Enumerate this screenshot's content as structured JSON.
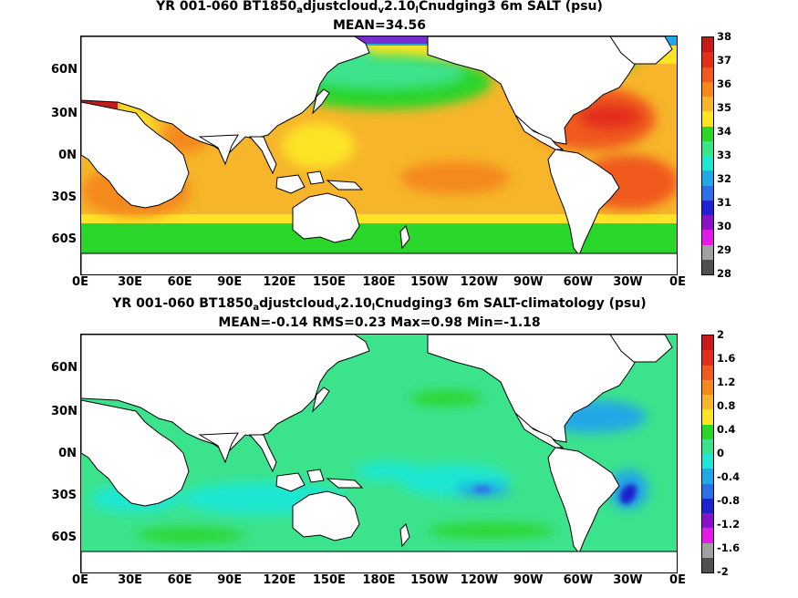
{
  "top": {
    "title_line1": {
      "a": "YR 001-060 BT1850",
      "sub1": "a",
      "b": "djustcloud",
      "sub2": "v",
      "c": "2.10",
      "sub3": "l",
      "d": "Cnudging3 6m SALT (psu)"
    },
    "title_line2": "MEAN=34.56",
    "colorbar": {
      "labels": [
        "38",
        "37",
        "36",
        "35",
        "34",
        "33",
        "32",
        "31",
        "30",
        "29",
        "28"
      ],
      "colors": [
        "#c51b1b",
        "#e32e1b",
        "#f05a1e",
        "#f4891f",
        "#f6b52a",
        "#fde427",
        "#2bd62b",
        "#3ce38d",
        "#1fe7d2",
        "#23a7e6",
        "#2d6fe6",
        "#1f23cf",
        "#8a12c8",
        "#e21ce6",
        "#a0a0a0",
        "#505050"
      ]
    }
  },
  "bottom": {
    "title_line1": {
      "a": "YR 001-060 BT1850",
      "sub1": "a",
      "b": "djustcloud",
      "sub2": "v",
      "c": "2.10",
      "sub3": "l",
      "d": "Cnudging3 6m SALT-climatology (psu)"
    },
    "title_line2": "MEAN=-0.14   RMS=0.23   Max=0.98   Min=-1.18",
    "colorbar": {
      "labels": [
        "2",
        "1.6",
        "1.2",
        "0.8",
        "0.4",
        "0",
        "-0.4",
        "-0.8",
        "-1.2",
        "-1.6",
        "-2"
      ],
      "colors": [
        "#c51b1b",
        "#e32e1b",
        "#f05a1e",
        "#f4891f",
        "#f6b52a",
        "#fde427",
        "#2bd62b",
        "#3ce38d",
        "#1fe7d2",
        "#23a7e6",
        "#2d6fe6",
        "#1f23cf",
        "#8a12c8",
        "#e21ce6",
        "#a0a0a0",
        "#505050"
      ]
    }
  },
  "lat_labels": [
    "60N",
    "30N",
    "0N",
    "30S",
    "60S"
  ],
  "lon_labels": [
    "0E",
    "30E",
    "60E",
    "90E",
    "120E",
    "150E",
    "180E",
    "150W",
    "120W",
    "90W",
    "60W",
    "30W",
    "0E"
  ],
  "colors": {
    "land": "#ffffff",
    "coast": "#000000"
  }
}
